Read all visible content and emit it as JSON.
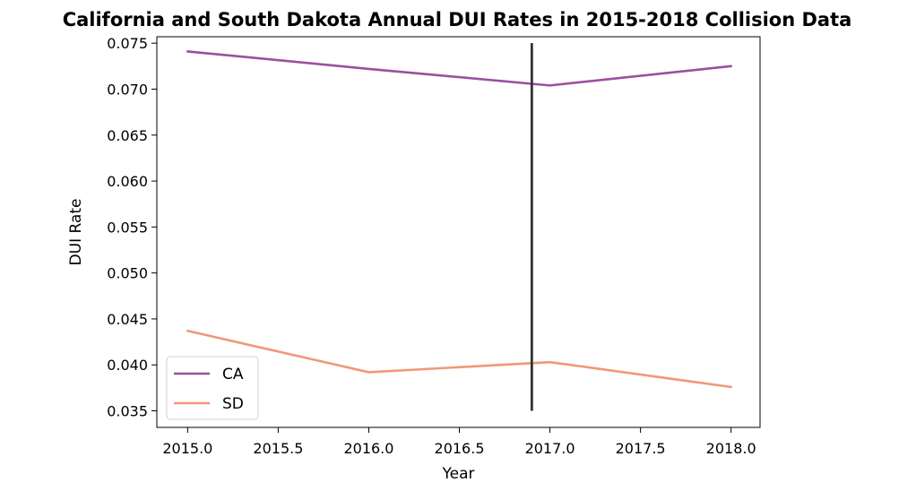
{
  "chart_data": {
    "type": "line",
    "title": "California and South Dakota Annual DUI Rates in 2015-2018 Collision Data",
    "xlabel": "Year",
    "ylabel": "DUI Rate",
    "xlim": [
      2014.83,
      2018.16
    ],
    "ylim": [
      0.0332,
      0.0757
    ],
    "xticks": [
      "2015.0",
      "2015.5",
      "2016.0",
      "2016.5",
      "2017.0",
      "2017.5",
      "2018.0"
    ],
    "yticks": [
      "0.035",
      "0.040",
      "0.045",
      "0.050",
      "0.055",
      "0.060",
      "0.065",
      "0.070",
      "0.075"
    ],
    "x": [
      2015,
      2016,
      2017,
      2018
    ],
    "series": [
      {
        "name": "CA",
        "values": [
          0.0741,
          0.0722,
          0.0704,
          0.0725
        ],
        "color": "#9c4f9e"
      },
      {
        "name": "SD",
        "values": [
          0.0437,
          0.0392,
          0.0403,
          0.0376
        ],
        "color": "#f0987a"
      }
    ],
    "vline": {
      "x": 2016.9,
      "ymin": 0.035,
      "ymax": 0.075,
      "color": "#333333"
    },
    "grid": false,
    "legend": "lower-left"
  }
}
